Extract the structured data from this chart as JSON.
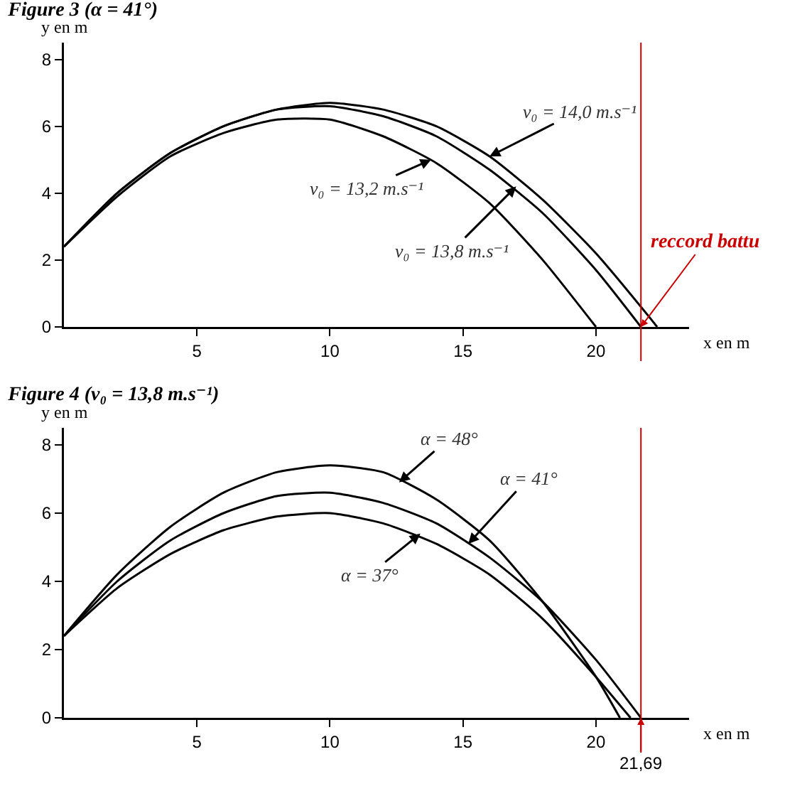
{
  "chart_data": [
    {
      "type": "line",
      "title": "Figure 3 (α = 41°)",
      "xlabel": "x en m",
      "ylabel": "y en m",
      "xlim": [
        0,
        23.5
      ],
      "ylim": [
        0,
        8.5
      ],
      "xticks": [
        5,
        10,
        15,
        20
      ],
      "yticks": [
        0,
        2,
        4,
        6,
        8
      ],
      "grid": false,
      "marker": "none",
      "line_style": "solid",
      "series": [
        {
          "color": "#000000",
          "x": [
            0,
            2,
            4,
            6,
            8,
            10,
            12,
            14,
            16,
            18,
            20,
            22,
            22.3
          ],
          "values": [
            2.4,
            4.0,
            5.2,
            6.0,
            6.5,
            6.7,
            6.5,
            6.0,
            5.1,
            3.8,
            2.2,
            0.3,
            0
          ]
        },
        {
          "color": "#000000",
          "x": [
            0,
            2,
            4,
            6,
            8,
            10,
            12,
            14,
            16,
            18,
            20,
            21.69
          ],
          "values": [
            2.4,
            4.0,
            5.2,
            6.0,
            6.5,
            6.6,
            6.3,
            5.7,
            4.7,
            3.4,
            1.7,
            0
          ]
        },
        {
          "color": "#000000",
          "x": [
            0,
            2,
            4,
            6,
            8,
            10,
            12,
            14,
            16,
            18,
            20
          ],
          "values": [
            2.4,
            3.9,
            5.1,
            5.8,
            6.2,
            6.2,
            5.7,
            4.9,
            3.7,
            2.0,
            0
          ]
        }
      ],
      "annotations": [
        {
          "text": "v₀ = 14,0 m.s⁻¹",
          "x": 16.0,
          "y": 5.1
        },
        {
          "text": "v₀ = 13,2 m.s⁻¹",
          "x": 13.8,
          "y": 5.0
        },
        {
          "text": "v₀ = 13,8 m.s⁻¹",
          "x": 17.0,
          "y": 4.2
        }
      ],
      "ref_lines": [
        {
          "axis": "x",
          "value": 21.69,
          "label": "reccord battu",
          "color": "#cc0000"
        }
      ]
    },
    {
      "type": "line",
      "title": "Figure 4 (v₀ = 13,8 m.s⁻¹)",
      "xlabel": "x en m",
      "ylabel": "y en m",
      "xlim": [
        0,
        23.5
      ],
      "ylim": [
        0,
        8.5
      ],
      "xticks": [
        5,
        10,
        15,
        20
      ],
      "yticks": [
        0,
        2,
        4,
        6,
        8
      ],
      "grid": false,
      "marker": "none",
      "line_style": "solid",
      "series": [
        {
          "color": "#000000",
          "x": [
            0,
            2,
            4,
            6,
            8,
            10,
            12,
            14,
            16,
            18,
            20,
            20.9
          ],
          "values": [
            2.4,
            4.2,
            5.6,
            6.6,
            7.2,
            7.4,
            7.2,
            6.4,
            5.2,
            3.4,
            1.2,
            0
          ]
        },
        {
          "color": "#000000",
          "x": [
            0,
            2,
            4,
            6,
            8,
            10,
            12,
            14,
            16,
            18,
            20,
            21.69
          ],
          "values": [
            2.4,
            4.0,
            5.2,
            6.0,
            6.5,
            6.6,
            6.3,
            5.7,
            4.7,
            3.4,
            1.7,
            0
          ]
        },
        {
          "color": "#000000",
          "x": [
            0,
            2,
            4,
            6,
            8,
            10,
            12,
            14,
            16,
            18,
            20,
            21.3
          ],
          "values": [
            2.4,
            3.8,
            4.8,
            5.5,
            5.9,
            6.0,
            5.7,
            5.1,
            4.2,
            2.9,
            1.2,
            0
          ]
        }
      ],
      "annotations": [
        {
          "text": "α = 48°",
          "x": 12.6,
          "y": 6.9
        },
        {
          "text": "α = 41°",
          "x": 15.2,
          "y": 5.1
        },
        {
          "text": "α = 37°",
          "x": 13.4,
          "y": 5.4
        }
      ],
      "ref_lines": [
        {
          "axis": "x",
          "value": 21.69,
          "label": "21,69",
          "color": "#cc0000"
        }
      ]
    }
  ]
}
